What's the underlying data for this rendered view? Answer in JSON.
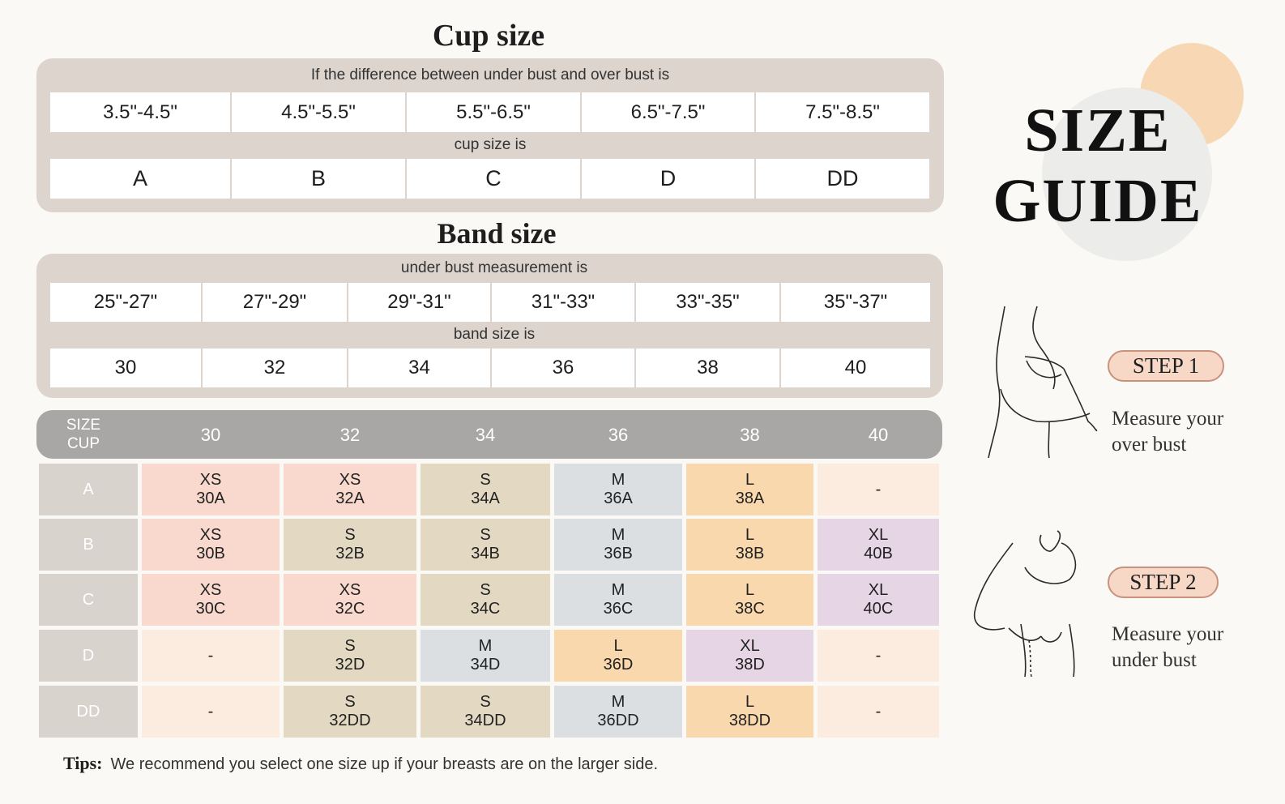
{
  "cup_size": {
    "title": "Cup size",
    "difference_label": "If the difference between under bust and over bust is",
    "ranges": [
      "3.5\"-4.5\"",
      "4.5\"-5.5\"",
      "5.5\"-6.5\"",
      "6.5\"-7.5\"",
      "7.5\"-8.5\""
    ],
    "cup_label": "cup size is",
    "cups": [
      "A",
      "B",
      "C",
      "D",
      "DD"
    ]
  },
  "band_size": {
    "title": "Band size",
    "measurement_label": "under bust measurement is",
    "ranges": [
      "25\"-27\"",
      "27\"-29\"",
      "29\"-31\"",
      "31\"-33\"",
      "33\"-35\"",
      "35\"-37\""
    ],
    "band_label": "band size is",
    "bands": [
      "30",
      "32",
      "34",
      "36",
      "38",
      "40"
    ]
  },
  "size_table": {
    "corner": [
      "SIZE",
      "CUP"
    ],
    "columns": [
      "30",
      "32",
      "34",
      "36",
      "38",
      "40"
    ],
    "rows": [
      {
        "cup": "A",
        "cells": [
          [
            "XS",
            "30A"
          ],
          [
            "XS",
            "32A"
          ],
          [
            "S",
            "34A"
          ],
          [
            "M",
            "36A"
          ],
          [
            "L",
            "38A"
          ],
          [
            "-"
          ]
        ]
      },
      {
        "cup": "B",
        "cells": [
          [
            "XS",
            "30B"
          ],
          [
            "S",
            "32B"
          ],
          [
            "S",
            "34B"
          ],
          [
            "M",
            "36B"
          ],
          [
            "L",
            "38B"
          ],
          [
            "XL",
            "40B"
          ]
        ]
      },
      {
        "cup": "C",
        "cells": [
          [
            "XS",
            "30C"
          ],
          [
            "XS",
            "32C"
          ],
          [
            "S",
            "34C"
          ],
          [
            "M",
            "36C"
          ],
          [
            "L",
            "38C"
          ],
          [
            "XL",
            "40C"
          ]
        ]
      },
      {
        "cup": "D",
        "cells": [
          [
            "-"
          ],
          [
            "S",
            "32D"
          ],
          [
            "M",
            "34D"
          ],
          [
            "L",
            "36D"
          ],
          [
            "XL",
            "38D"
          ],
          [
            "-"
          ]
        ]
      },
      {
        "cup": "DD",
        "cells": [
          [
            "-"
          ],
          [
            "S",
            "32DD"
          ],
          [
            "S",
            "34DD"
          ],
          [
            "M",
            "36DD"
          ],
          [
            "L",
            "38DD"
          ],
          [
            "-"
          ]
        ]
      }
    ]
  },
  "tips": {
    "label": "Tips:",
    "text": "We recommend you select one size up if your breasts are on the larger side."
  },
  "guide": {
    "title_lines": [
      "SIZE",
      "GUIDE"
    ],
    "steps": [
      {
        "label": "STEP 1",
        "text_lines": [
          "Measure your",
          "over bust"
        ]
      },
      {
        "label": "STEP 2",
        "text_lines": [
          "Measure your",
          "under bust"
        ]
      }
    ]
  }
}
